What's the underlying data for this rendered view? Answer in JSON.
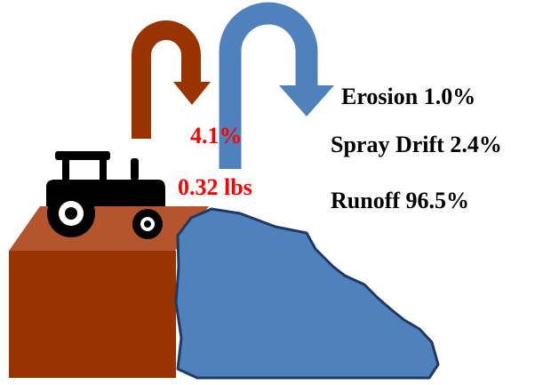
{
  "annotations": {
    "transfer": "4.1%",
    "amount": "0.32 lbs"
  },
  "pathways": [
    {
      "label": "Erosion 1.0%"
    },
    {
      "label": "Spray Drift 2.4%"
    },
    {
      "label": "Runoff 96.5%"
    }
  ]
}
